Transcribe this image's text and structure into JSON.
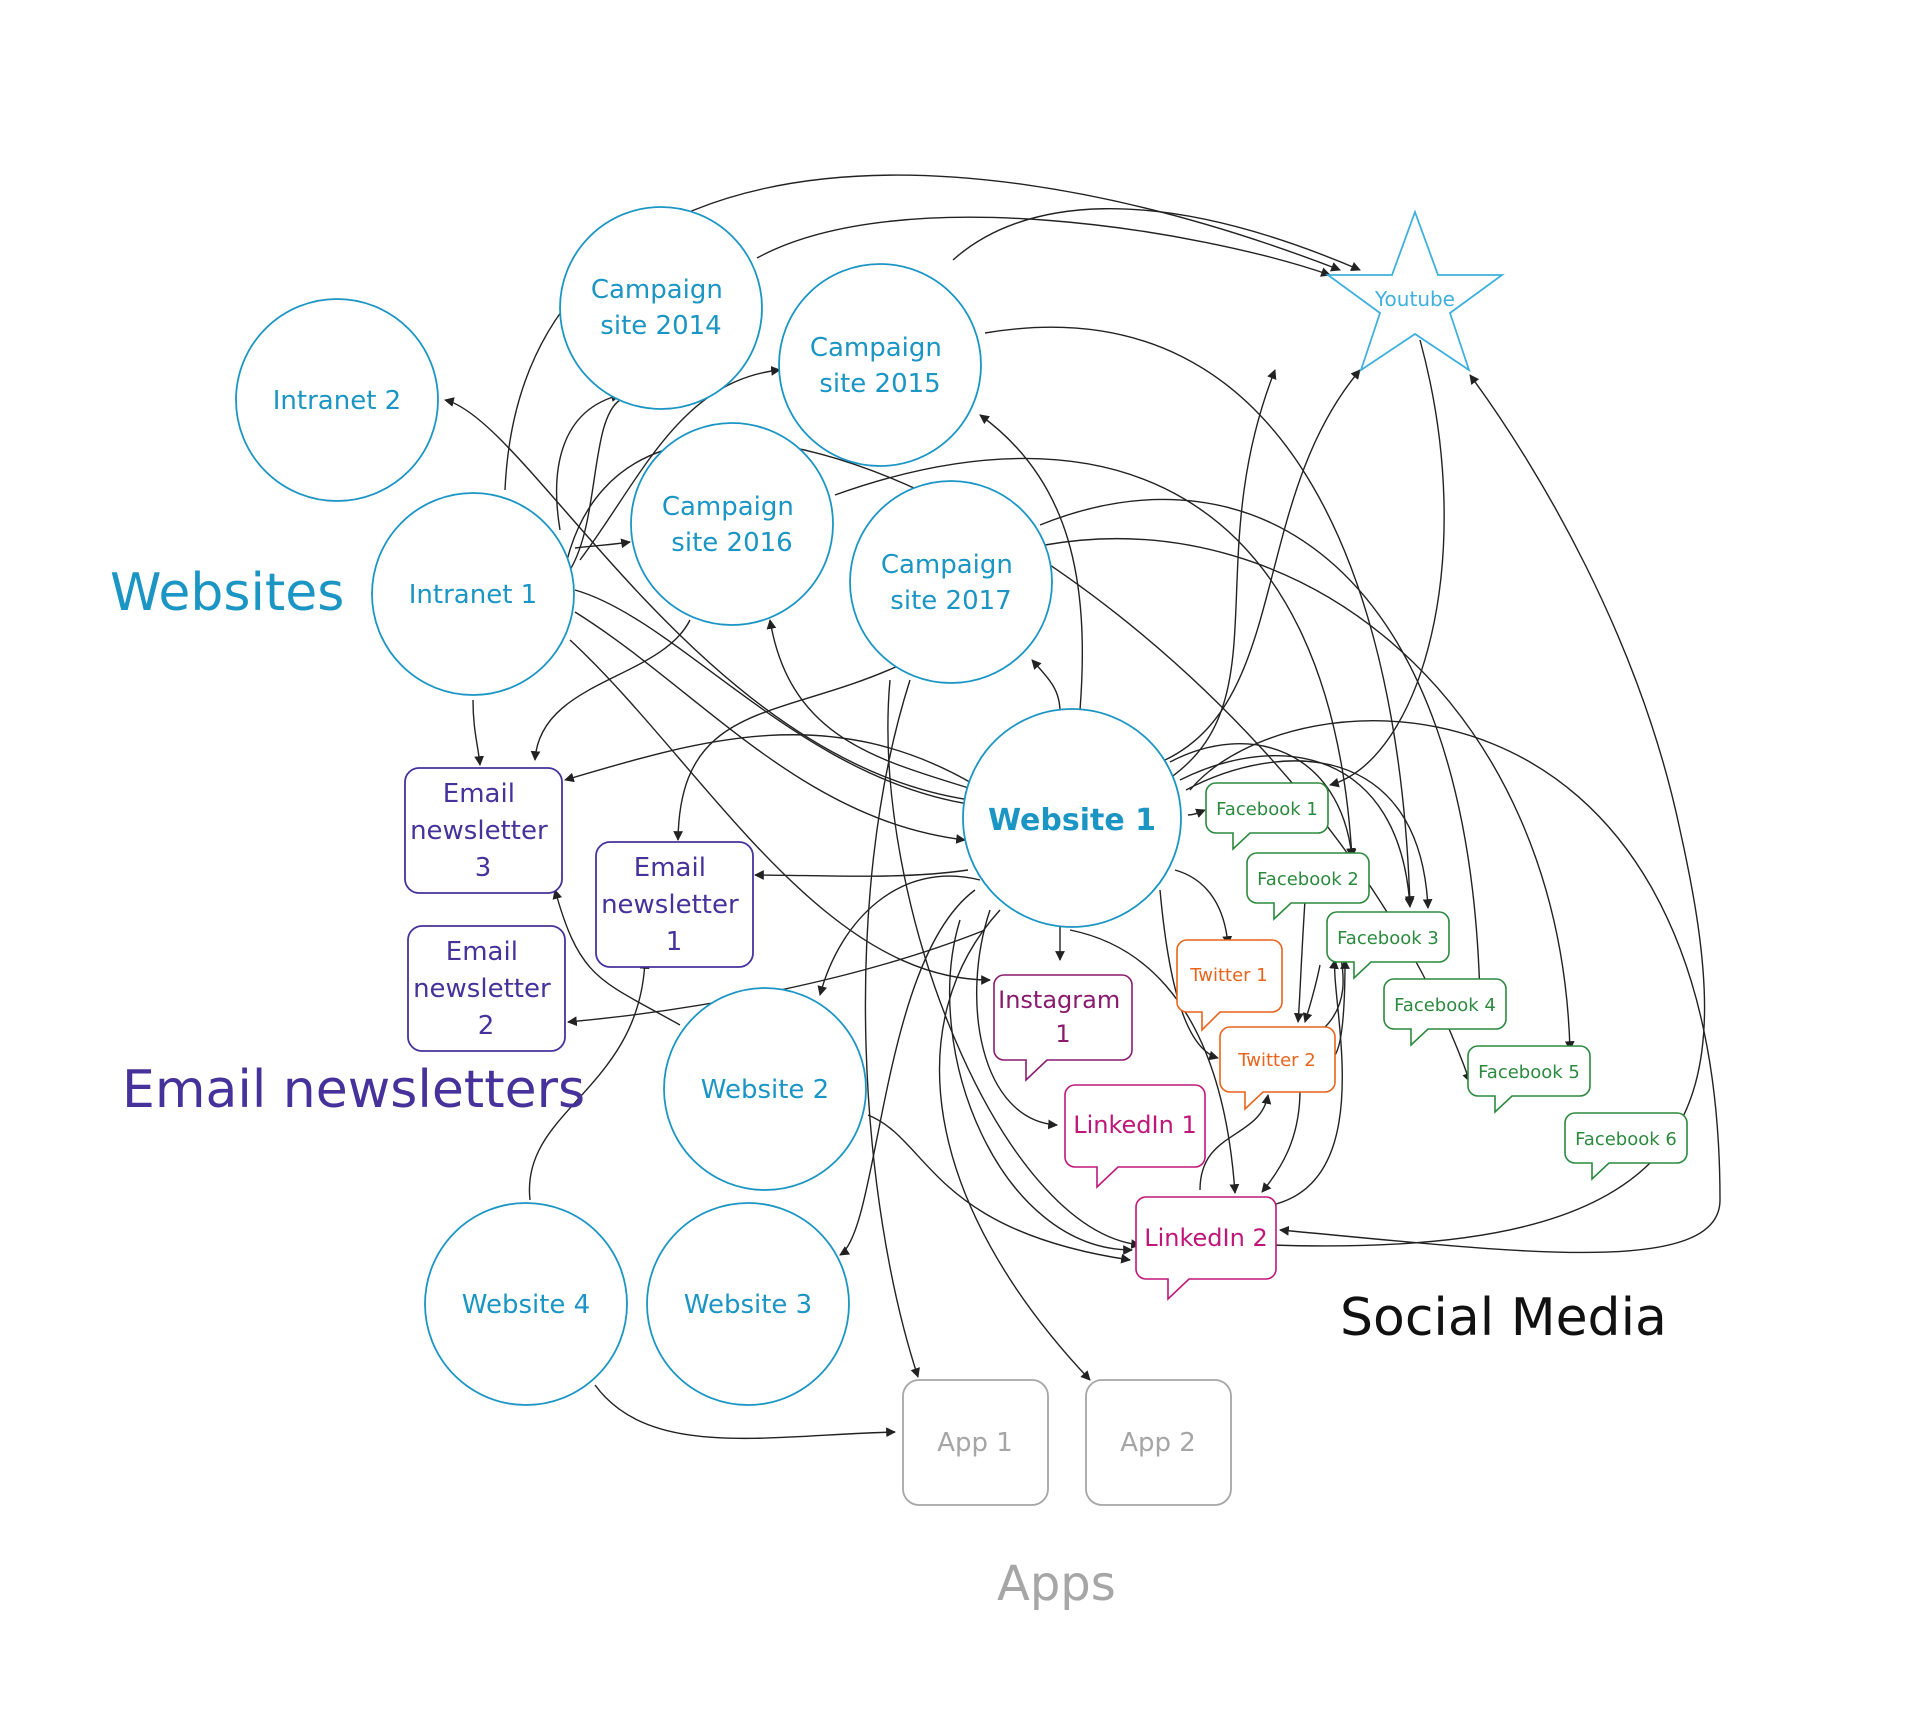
{
  "colors": {
    "website": "#1b95c4",
    "email": "#47319b",
    "youtube": "#3fb0dc",
    "facebook": "#2b8a3e",
    "twitter": "#e8641b",
    "instagram": "#8a1a6e",
    "linkedin": "#c0167a",
    "app": "#a6a6a6",
    "social_title": "#111111",
    "edge": "#222222"
  },
  "categories": {
    "websites": "Websites",
    "email_newsletters": "Email newsletters",
    "social_media": "Social Media",
    "apps": "Apps"
  },
  "nodes": {
    "campaign2014": [
      "Campaign",
      "site 2014"
    ],
    "campaign2015": [
      "Campaign",
      "site 2015"
    ],
    "campaign2016": [
      "Campaign",
      "site 2016"
    ],
    "campaign2017": [
      "Campaign",
      "site 2017"
    ],
    "intranet2": [
      "Intranet 2"
    ],
    "intranet1": [
      "Intranet 1"
    ],
    "website1": [
      "Website 1"
    ],
    "website2": [
      "Website 2"
    ],
    "website3": [
      "Website 3"
    ],
    "website4": [
      "Website 4"
    ],
    "youtube": [
      "Youtube"
    ],
    "email3": [
      "Email",
      "newsletter",
      "3"
    ],
    "email2": [
      "Email",
      "newsletter",
      "2"
    ],
    "email1": [
      "Email",
      "newsletter",
      "1"
    ],
    "facebook1": [
      "Facebook 1"
    ],
    "facebook2": [
      "Facebook 2"
    ],
    "facebook3": [
      "Facebook 3"
    ],
    "facebook4": [
      "Facebook 4"
    ],
    "facebook5": [
      "Facebook 5"
    ],
    "facebook6": [
      "Facebook 6"
    ],
    "twitter1": [
      "Twitter 1"
    ],
    "twitter2": [
      "Twitter 2"
    ],
    "instagram1": [
      "Instagram",
      "1"
    ],
    "linkedin1": [
      "LinkedIn 1"
    ],
    "linkedin2": [
      "LinkedIn 2"
    ],
    "app1": [
      "App 1"
    ],
    "app2": [
      "App 2"
    ]
  }
}
